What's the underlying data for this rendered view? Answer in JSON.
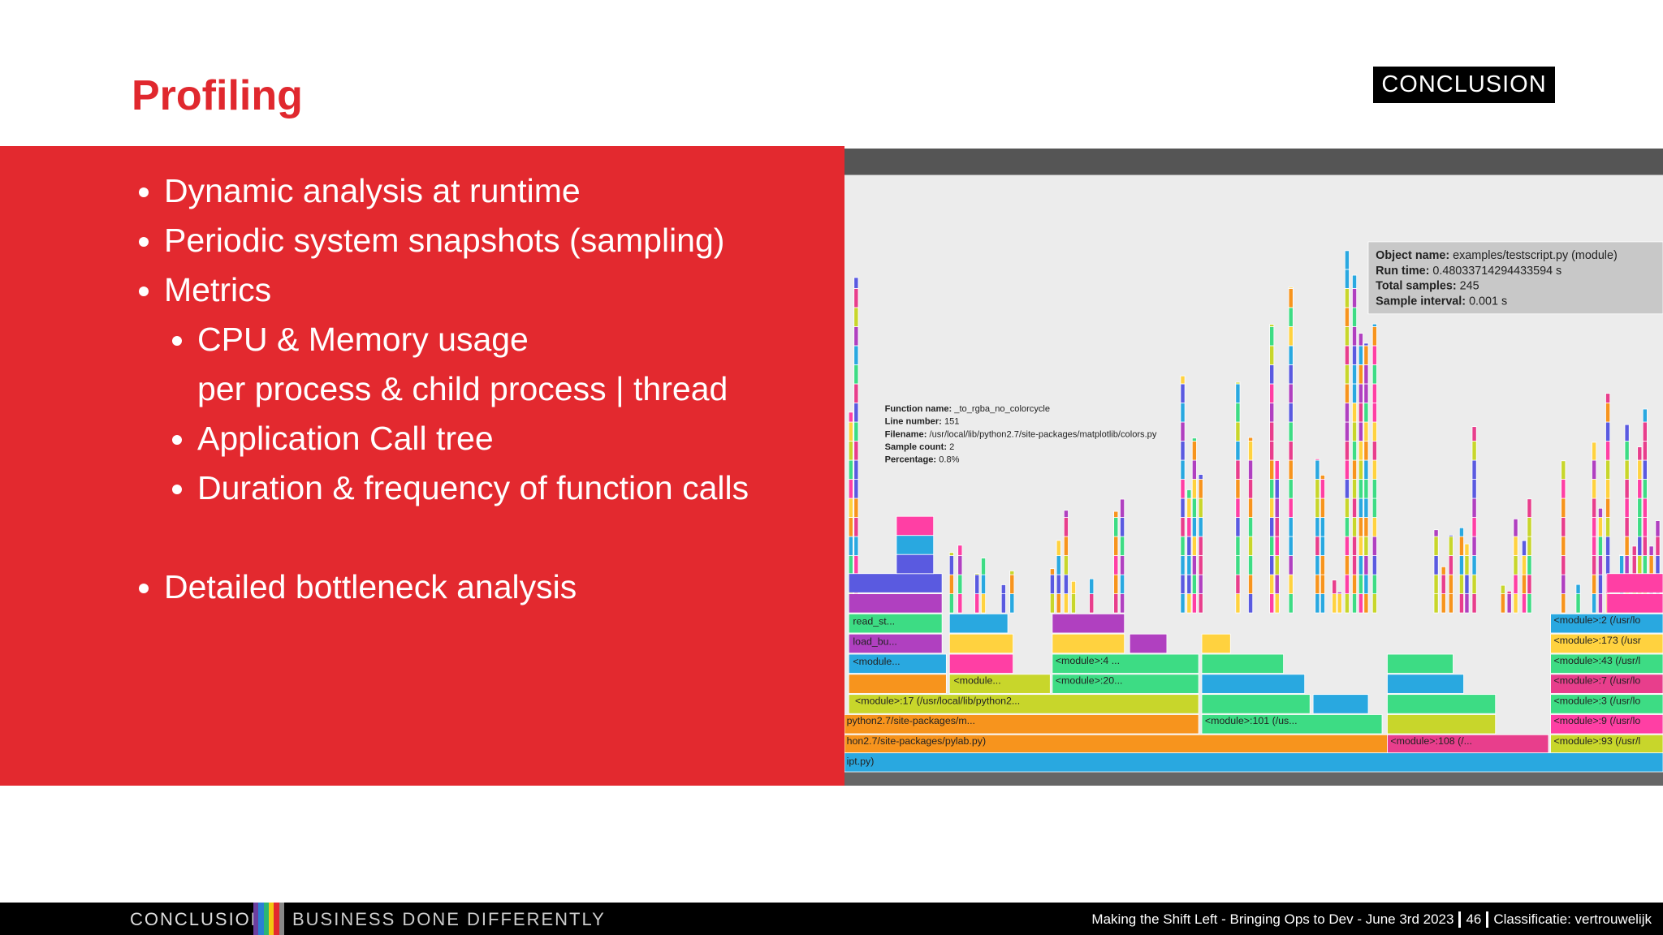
{
  "header": {
    "title": "Profiling",
    "logo": "CONCLUSION"
  },
  "bullets": [
    {
      "text": "Dynamic analysis at runtime"
    },
    {
      "text": "Periodic system snapshots (sampling)"
    },
    {
      "text": "Metrics",
      "children": [
        {
          "text": "CPU & Memory usage",
          "continuation": "per process & child process | thread"
        },
        {
          "text": "Application Call tree"
        },
        {
          "text": "Duration & frequency of function calls"
        }
      ]
    },
    {
      "text": "Detailed bottleneck analysis"
    }
  ],
  "flame_graph": {
    "object_tooltip": [
      {
        "key": "Object name:",
        "value": "examples/testscript.py (module)"
      },
      {
        "key": "Run time:",
        "value": "0.48033714294433594 s"
      },
      {
        "key": "Total samples:",
        "value": "245"
      },
      {
        "key": "Sample interval:",
        "value": "0.001 s"
      }
    ],
    "function_tooltip": [
      {
        "key": "Function name:",
        "value": "_to_rgba_no_colorcycle"
      },
      {
        "key": "Line number:",
        "value": "151"
      },
      {
        "key": "Filename:",
        "value": "/usr/local/lib/python2.7/site-packages/matplotlib/colors.py"
      },
      {
        "key": "Sample count:",
        "value": "2"
      },
      {
        "key": "Percentage:",
        "value": "0.8%"
      }
    ],
    "bar_labels": [
      "<module>:17 (/usr/local/lib/python2...",
      "python2.7/site-packages/m...",
      "hon2.7/site-packages/pylab.py)",
      "ipt.py)",
      "<module>:101 (/us...",
      "<module>:108 (/...",
      "<module>:93 (/usr/l",
      "<module>:9 (/usr/lo",
      "<module>:3 (/usr/lo",
      "<module>:7 (/usr/lo",
      "<module>:43 (/usr/l",
      "<module>:173 (/usr",
      "<module>:2 (/usr/lo",
      "read_st...",
      "load_bu...",
      "<module...",
      "<module...",
      "<module>:4 ...",
      "<module>:20..."
    ]
  },
  "footer": {
    "brand": "CONCLUSION",
    "tagline": "BUSINESS DONE DIFFERENTLY",
    "presentation": "Making the Shift Left - Bringing Ops to Dev  - June 3rd 2023",
    "page": "46",
    "classification": "Classificatie: vertrouwelijk"
  }
}
